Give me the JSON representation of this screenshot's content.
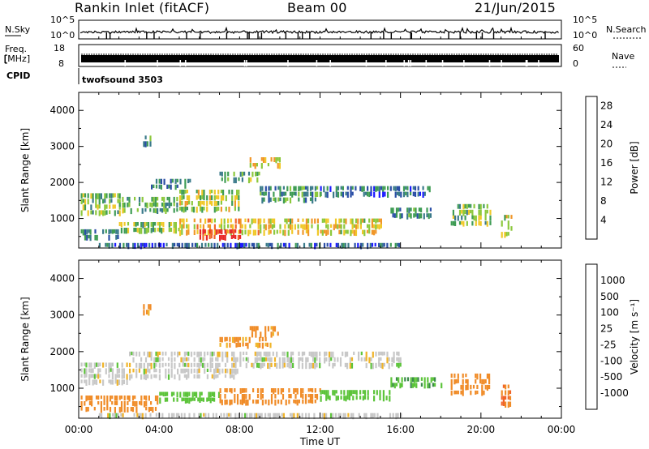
{
  "header": {
    "station": "Rankin Inlet (fitACF)",
    "beam": "Beam 00",
    "date": "21/Jun/2015"
  },
  "top_panels": {
    "nsky_label": "N.Sky",
    "nsky_top_tick": "10^5",
    "nsky_bottom_tick": "10^0",
    "nsearch_label": "N.Search",
    "nsearch_top_tick": "10^5",
    "nsearch_bottom_tick": "10^0",
    "freq_label": "Freq.",
    "freq_unit": "[MHz]",
    "freq_top_tick": "18",
    "freq_bottom_tick": "8",
    "nave_label": "Nave",
    "nave_top_tick": "60",
    "nave_bottom_tick": "0",
    "cpid_label": "CPID",
    "cpid_value": "twofsound 3503"
  },
  "colors": {
    "power_scale": [
      "#1a1aff",
      "#2a4ea6",
      "#3a7a8a",
      "#3f9c55",
      "#8cc83c",
      "#f0c828",
      "#f09628",
      "#f06428",
      "#e82828"
    ],
    "velocity_scale": [
      "#2a3aa8",
      "#3a66b8",
      "#3a8a4a",
      "#5cc43a",
      "#c8c8c8",
      "#c8c8c8",
      "#f0b428",
      "#f08c28",
      "#f06428",
      "#e82828"
    ]
  },
  "chart_data": [
    {
      "type": "heatmap",
      "title": "",
      "quantity": "Power",
      "xlabel": "",
      "ylabel": "Slant Range [km]",
      "xlim_hours": [
        0,
        24
      ],
      "ylim": [
        180,
        4500
      ],
      "x_ticks": [
        "00:00",
        "04:00",
        "08:00",
        "12:00",
        "16:00",
        "20:00",
        "00:00"
      ],
      "y_ticks": [
        1000,
        2000,
        3000,
        4000
      ],
      "colorbar": {
        "label": "Power [dB]",
        "ticks": [
          4,
          8,
          12,
          16,
          20,
          24,
          28
        ],
        "range": [
          0,
          30
        ]
      },
      "regions": [
        {
          "t0": 0.1,
          "t1": 2.0,
          "r0": 1200,
          "r1": 1700,
          "value": 14
        },
        {
          "t0": 0.1,
          "t1": 2.0,
          "r0": 450,
          "r1": 700,
          "value": 8
        },
        {
          "t0": 2.0,
          "t1": 5.0,
          "r0": 1200,
          "r1": 1600,
          "value": 12
        },
        {
          "t0": 2.0,
          "t1": 5.0,
          "r0": 600,
          "r1": 900,
          "value": 14
        },
        {
          "t0": 3.5,
          "t1": 5.5,
          "r0": 1800,
          "r1": 2100,
          "value": 10
        },
        {
          "t0": 5.0,
          "t1": 8.0,
          "r0": 1300,
          "r1": 1800,
          "value": 16
        },
        {
          "t0": 5.0,
          "t1": 9.0,
          "r0": 600,
          "r1": 1000,
          "value": 20
        },
        {
          "t0": 6.0,
          "t1": 8.0,
          "r0": 450,
          "r1": 700,
          "value": 28
        },
        {
          "t0": 7.0,
          "t1": 9.0,
          "r0": 2100,
          "r1": 2300,
          "value": 12
        },
        {
          "t0": 8.5,
          "t1": 10.0,
          "r0": 2400,
          "r1": 2700,
          "value": 18
        },
        {
          "t0": 9.0,
          "t1": 12.0,
          "r0": 1500,
          "r1": 1900,
          "value": 10
        },
        {
          "t0": 9.0,
          "t1": 15.0,
          "r0": 600,
          "r1": 1000,
          "value": 18
        },
        {
          "t0": 12.0,
          "t1": 17.5,
          "r0": 1650,
          "r1": 1900,
          "value": 7
        },
        {
          "t0": 15.5,
          "t1": 17.5,
          "r0": 1000,
          "r1": 1300,
          "value": 10
        },
        {
          "t0": 18.5,
          "t1": 20.5,
          "r0": 900,
          "r1": 1400,
          "value": 14
        },
        {
          "t0": 21.0,
          "t1": 21.5,
          "r0": 600,
          "r1": 1100,
          "value": 18
        },
        {
          "t0": 1.0,
          "t1": 16.0,
          "r0": 200,
          "r1": 320,
          "value": 6
        },
        {
          "t0": 3.2,
          "t1": 3.6,
          "r0": 3000,
          "r1": 3300,
          "value": 10
        }
      ]
    },
    {
      "type": "heatmap",
      "title": "",
      "quantity": "Velocity",
      "xlabel": "Time UT",
      "ylabel": "Slant Range [km]",
      "xlim_hours": [
        0,
        24
      ],
      "ylim": [
        180,
        4500
      ],
      "x_ticks": [
        "00:00",
        "04:00",
        "08:00",
        "12:00",
        "16:00",
        "20:00",
        "00:00"
      ],
      "y_ticks": [
        1000,
        2000,
        3000,
        4000
      ],
      "colorbar": {
        "label": "Velocity [m s⁻¹]",
        "ticks": [
          "1000",
          "500",
          "100",
          "25",
          "-25",
          "-100",
          "-500",
          "-1000"
        ]
      },
      "regions": [
        {
          "t0": 0.1,
          "t1": 2.5,
          "r0": 1200,
          "r1": 1700,
          "value": 0
        },
        {
          "t0": 0.1,
          "t1": 4.0,
          "r0": 450,
          "r1": 800,
          "value": -200
        },
        {
          "t0": 2.5,
          "t1": 8.0,
          "r0": 1300,
          "r1": 2000,
          "value": 0
        },
        {
          "t0": 3.2,
          "t1": 3.6,
          "r0": 3000,
          "r1": 3300,
          "value": -150
        },
        {
          "t0": 4.0,
          "t1": 7.0,
          "r0": 600,
          "r1": 900,
          "value": 60
        },
        {
          "t0": 7.0,
          "t1": 9.5,
          "r0": 2100,
          "r1": 2400,
          "value": -120
        },
        {
          "t0": 8.5,
          "t1": 10.0,
          "r0": 2450,
          "r1": 2700,
          "value": -150
        },
        {
          "t0": 7.0,
          "t1": 12.0,
          "r0": 600,
          "r1": 1000,
          "value": -200
        },
        {
          "t0": 8.0,
          "t1": 16.0,
          "r0": 1600,
          "r1": 2000,
          "value": 0
        },
        {
          "t0": 12.0,
          "t1": 15.5,
          "r0": 650,
          "r1": 950,
          "value": 60
        },
        {
          "t0": 15.5,
          "t1": 18.0,
          "r0": 1000,
          "r1": 1300,
          "value": 80
        },
        {
          "t0": 18.5,
          "t1": 20.5,
          "r0": 900,
          "r1": 1400,
          "value": -300
        },
        {
          "t0": 21.0,
          "t1": 21.5,
          "r0": 600,
          "r1": 1100,
          "value": -500
        },
        {
          "t0": 1.0,
          "t1": 16.0,
          "r0": 200,
          "r1": 320,
          "value": 0
        }
      ]
    }
  ]
}
